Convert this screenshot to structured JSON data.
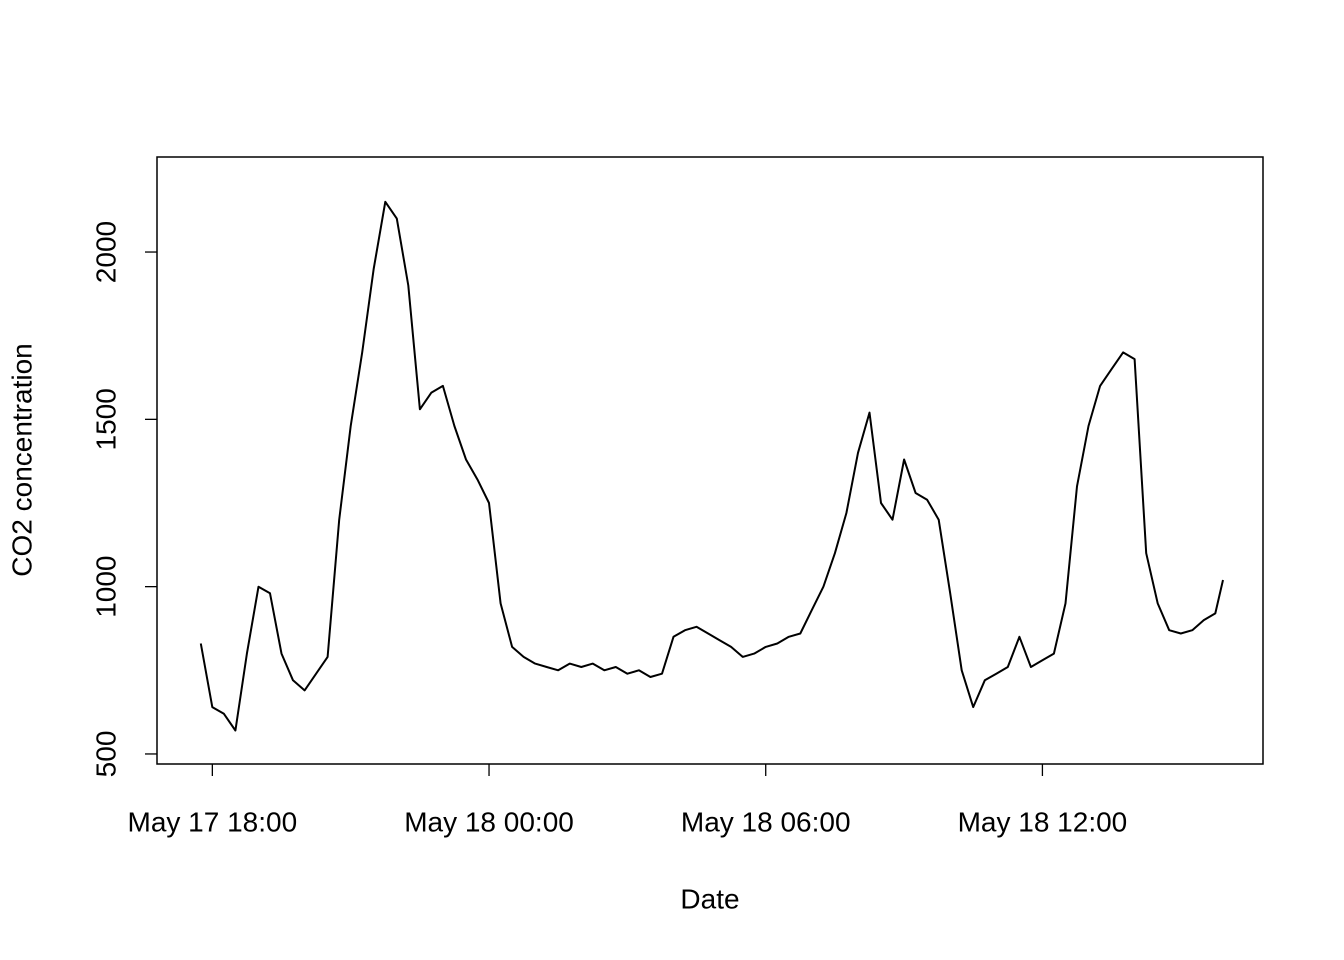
{
  "chart_data": {
    "type": "line",
    "x_label": "Date",
    "y_label": "CO2 concentration",
    "x": [
      "May 17 17:45",
      "May 17 18:00",
      "May 17 18:15",
      "May 17 18:30",
      "May 17 18:45",
      "May 17 19:00",
      "May 17 19:15",
      "May 17 19:30",
      "May 17 19:45",
      "May 17 20:00",
      "May 17 20:15",
      "May 17 20:30",
      "May 17 20:45",
      "May 17 21:00",
      "May 17 21:15",
      "May 17 21:30",
      "May 17 21:45",
      "May 17 22:00",
      "May 17 22:15",
      "May 17 22:30",
      "May 17 22:45",
      "May 17 23:00",
      "May 17 23:15",
      "May 17 23:30",
      "May 17 23:45",
      "May 18 00:00",
      "May 18 00:15",
      "May 18 00:30",
      "May 18 00:45",
      "May 18 01:00",
      "May 18 01:15",
      "May 18 01:30",
      "May 18 01:45",
      "May 18 02:00",
      "May 18 02:15",
      "May 18 02:30",
      "May 18 02:45",
      "May 18 03:00",
      "May 18 03:15",
      "May 18 03:30",
      "May 18 03:45",
      "May 18 04:00",
      "May 18 04:15",
      "May 18 04:30",
      "May 18 04:45",
      "May 18 05:00",
      "May 18 05:15",
      "May 18 05:30",
      "May 18 05:45",
      "May 18 06:00",
      "May 18 06:15",
      "May 18 06:30",
      "May 18 06:45",
      "May 18 07:00",
      "May 18 07:15",
      "May 18 07:30",
      "May 18 07:45",
      "May 18 08:00",
      "May 18 08:15",
      "May 18 08:30",
      "May 18 08:45",
      "May 18 09:00",
      "May 18 09:15",
      "May 18 09:30",
      "May 18 09:45",
      "May 18 10:00",
      "May 18 10:15",
      "May 18 10:30",
      "May 18 10:45",
      "May 18 11:00",
      "May 18 11:15",
      "May 18 11:30",
      "May 18 11:45",
      "May 18 12:00",
      "May 18 12:15",
      "May 18 12:30",
      "May 18 12:45",
      "May 18 13:00",
      "May 18 13:15",
      "May 18 13:30",
      "May 18 13:45",
      "May 18 14:00",
      "May 18 14:15",
      "May 18 14:30",
      "May 18 14:45",
      "May 18 15:00",
      "May 18 15:15",
      "May 18 15:30",
      "May 18 15:45",
      "May 18 15:55"
    ],
    "series": [
      {
        "name": "CO2 concentration",
        "color": "#000000",
        "values": [
          830,
          640,
          620,
          570,
          800,
          1000,
          980,
          800,
          720,
          690,
          740,
          790,
          1200,
          1480,
          1700,
          1950,
          2150,
          2100,
          1900,
          1530,
          1580,
          1600,
          1480,
          1380,
          1320,
          1250,
          950,
          820,
          790,
          770,
          760,
          750,
          770,
          760,
          770,
          750,
          760,
          740,
          750,
          730,
          740,
          850,
          870,
          880,
          860,
          840,
          820,
          790,
          800,
          820,
          830,
          850,
          860,
          930,
          1000,
          1100,
          1220,
          1400,
          1520,
          1250,
          1200,
          1380,
          1280,
          1260,
          1200,
          980,
          750,
          640,
          720,
          740,
          760,
          850,
          760,
          780,
          800,
          950,
          1300,
          1480,
          1600,
          1650,
          1700,
          1680,
          1100,
          950,
          870,
          860,
          870,
          900,
          920,
          1020
        ]
      }
    ],
    "xlim": [
      "May 17 16:48",
      "May 18 16:47"
    ],
    "xticks": [
      "May 17 18:00",
      "May 18 00:00",
      "May 18 06:00",
      "May 18 12:00"
    ],
    "ylim": [
      470,
      2284
    ],
    "yticks": [
      500,
      1000,
      1500,
      2000
    ]
  }
}
